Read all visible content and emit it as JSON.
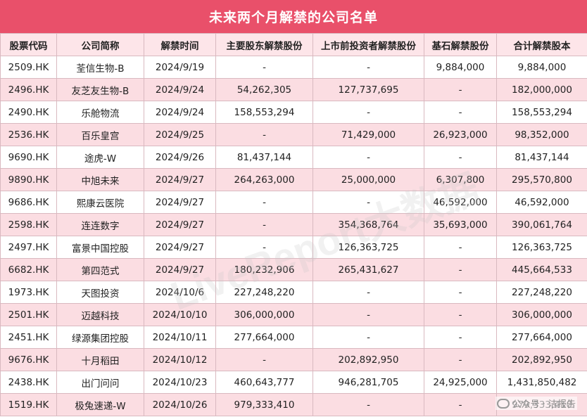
{
  "title": "未来两个月解禁的公司名单",
  "columns": [
    "股票代码",
    "公司简称",
    "解禁时间",
    "主要股东解禁股份",
    "上市前投资者解禁股份",
    "基石解禁股份",
    "合计解禁股本"
  ],
  "rows": [
    [
      "2509.HK",
      "荃信生物-B",
      "2024/9/19",
      "-",
      "-",
      "9,884,000",
      "9,884,000"
    ],
    [
      "2496.HK",
      "友芝友生物-B",
      "2024/9/24",
      "54,262,305",
      "127,737,695",
      "-",
      "182,000,000"
    ],
    [
      "2490.HK",
      "乐舱物流",
      "2024/9/24",
      "158,553,294",
      "-",
      "-",
      "158,553,294"
    ],
    [
      "2536.HK",
      "百乐皇宫",
      "2024/9/25",
      "-",
      "71,429,000",
      "26,923,000",
      "98,352,000"
    ],
    [
      "9690.HK",
      "途虎-W",
      "2024/9/26",
      "81,437,144",
      "-",
      "-",
      "81,437,144"
    ],
    [
      "9890.HK",
      "中旭未来",
      "2024/9/27",
      "264,263,000",
      "25,000,000",
      "6,307,800",
      "295,570,800"
    ],
    [
      "9686.HK",
      "熙康云医院",
      "2024/9/27",
      "-",
      "-",
      "46,592,000",
      "46,592,000"
    ],
    [
      "2598.HK",
      "连连数字",
      "2024/9/27",
      "-",
      "354,368,764",
      "35,693,000",
      "390,061,764"
    ],
    [
      "2497.HK",
      "富景中国控股",
      "2024/9/27",
      "-",
      "126,363,725",
      "-",
      "126,363,725"
    ],
    [
      "6682.HK",
      "第四范式",
      "2024/9/27",
      "180,232,906",
      "265,431,627",
      "-",
      "445,664,533"
    ],
    [
      "1973.HK",
      "天图投资",
      "2024/10/6",
      "227,248,220",
      "-",
      "-",
      "227,248,220"
    ],
    [
      "2501.HK",
      "迈越科技",
      "2024/10/10",
      "306,000,000",
      "-",
      "-",
      "306,000,000"
    ],
    [
      "2451.HK",
      "绿源集团控股",
      "2024/10/11",
      "277,664,000",
      "-",
      "-",
      "277,664,000"
    ],
    [
      "9676.HK",
      "十月稻田",
      "2024/10/12",
      "-",
      "202,892,950",
      "-",
      "202,892,950"
    ],
    [
      "2438.HK",
      "出门问问",
      "2024/10/23",
      "460,643,777",
      "946,281,705",
      "24,925,000",
      "1,431,850,482"
    ],
    [
      "1519.HK",
      "极兔速递-W",
      "2024/10/26",
      "979,333,410",
      "-",
      "-",
      "979,333,410"
    ]
  ],
  "watermark": "LiveReport大数据",
  "badge": "公众号 · 洁报告"
}
